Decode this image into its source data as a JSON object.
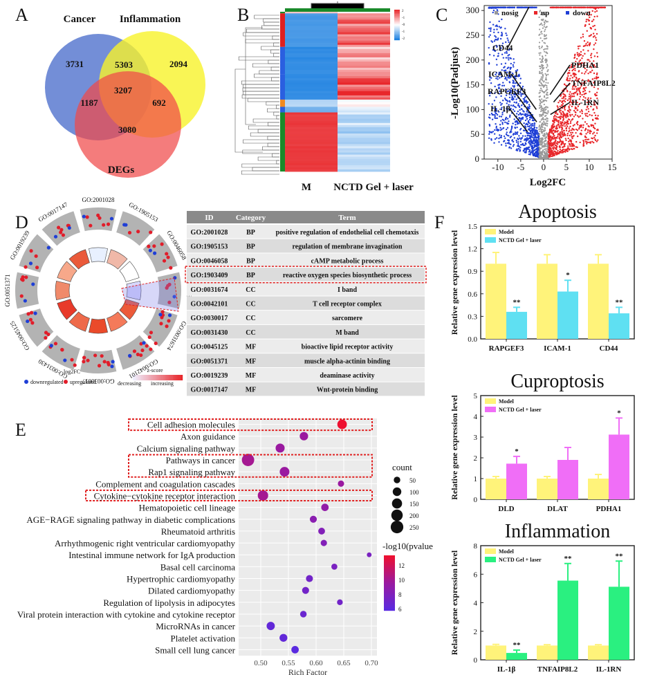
{
  "panel_letters": [
    "A",
    "B",
    "C",
    "D",
    "E",
    "F"
  ],
  "colors": {
    "up": "#e8262a",
    "down": "#1f3fd6",
    "nosig": "#999999",
    "yellow": "#ffee55",
    "cyan": "#5fe0f2",
    "magenta": "#f06ef7",
    "green": "#2af080",
    "model": "#fff37a",
    "red_dot": "#e11d2a"
  },
  "chart_data": [
    {
      "id": "A",
      "type": "venn",
      "sets": [
        "Cancer",
        "Inflammation",
        "DEGs"
      ],
      "regions": {
        "cancer_only": 3731,
        "inflammation_only": 2094,
        "degs_only": 3080,
        "cancer_inflammation": 5303,
        "cancer_degs": 1187,
        "inflammation_degs": 692,
        "all": 3207
      }
    },
    {
      "id": "B",
      "type": "heatmap",
      "columns": [
        "M",
        "NCTD Gel + laser"
      ],
      "scale_ticks": [
        "2",
        "-1",
        "-0",
        "-1",
        "-2"
      ],
      "blocks": [
        {
          "rows": 0.01,
          "M": 0.6,
          "N": 0.6,
          "group": "green"
        },
        {
          "rows": 0.21,
          "M": -1.6,
          "N": 1.4,
          "group": "red"
        },
        {
          "rows": 0.17,
          "M": -1.8,
          "N": 0.9,
          "group": "blue"
        },
        {
          "rows": 0.16,
          "M": -1.8,
          "N": 1.8,
          "group": "blue"
        },
        {
          "rows": 0.045,
          "M": -0.6,
          "N": 0.2,
          "group": "orange"
        },
        {
          "rows": 0.035,
          "M": -1.2,
          "N": -0.3,
          "group": "blue"
        },
        {
          "rows": 0.37,
          "M": 1.8,
          "N": -0.7,
          "group": "green"
        }
      ]
    },
    {
      "id": "C",
      "type": "scatter",
      "legend": [
        "nosig",
        "up",
        "down"
      ],
      "xlabel": "Log2FC",
      "ylabel": "-Log10(Padjust)",
      "xlim": [
        -13,
        15
      ],
      "ylim": [
        0,
        310
      ],
      "xticks": [
        "-10",
        "-5",
        "0",
        "5",
        "10",
        "15"
      ],
      "yticks": [
        "0",
        "50",
        "100",
        "150",
        "200",
        "250",
        "300"
      ],
      "annotations": [
        {
          "label": "CD44",
          "x": -3.2,
          "y": 307
        },
        {
          "label": "ICAM-1",
          "x": -1.6,
          "y": 100
        },
        {
          "label": "RAPGEF3",
          "x": -1.5,
          "y": 75
        },
        {
          "label": "IL-1β",
          "x": -3.5,
          "y": 55
        },
        {
          "label": "PDHA1",
          "x": 1.4,
          "y": 130
        },
        {
          "label": "TNFAIP8L2",
          "x": 2.2,
          "y": 115
        },
        {
          "label": "IL-1RN",
          "x": 1.5,
          "y": 90
        }
      ]
    },
    {
      "id": "D",
      "type": "table",
      "circle_labels": [
        "GO:2001028",
        "GO:1905153",
        "GO:0046058",
        "GO:1903409",
        "GO:0031674",
        "GO:0042101",
        "GO:0030017",
        "GO:0031430",
        "GO:0045125",
        "GO:0051371",
        "GO:0019239",
        "GO:0017147"
      ],
      "circle_legend": {
        "log2fc": "log2FC",
        "down": "downregulated",
        "up": "upregulated",
        "zscore": "z-score",
        "decreasing": "decreasing",
        "increasing": "increasing"
      },
      "header": [
        "ID",
        "Category",
        "Term"
      ],
      "rows": [
        [
          "GO:2001028",
          "BP",
          "positive regulation of endothelial cell chemotaxis"
        ],
        [
          "GO:1905153",
          "BP",
          "regulation of membrane invagination"
        ],
        [
          "GO:0046058",
          "BP",
          "cAMP metabolic process"
        ],
        [
          "GO:1903409",
          "BP",
          "reactive oxygen species biosynthetic process"
        ],
        [
          "GO:0031674",
          "CC",
          "I band"
        ],
        [
          "GO:0042101",
          "CC",
          "T cell receptor complex"
        ],
        [
          "GO:0030017",
          "CC",
          "sarcomere"
        ],
        [
          "GO:0031430",
          "CC",
          "M band"
        ],
        [
          "GO:0045125",
          "MF",
          "bioactive lipid receptor activity"
        ],
        [
          "GO:0051371",
          "MF",
          "muscle alpha-actinin binding"
        ],
        [
          "GO:0019239",
          "MF",
          "deaminase activity"
        ],
        [
          "GO:0017147",
          "MF",
          "Wnt-protein binding"
        ]
      ]
    },
    {
      "id": "E",
      "type": "scatter",
      "xlabel": "Rich Factor",
      "xlim": [
        0.46,
        0.71
      ],
      "xticks": [
        0.5,
        0.55,
        0.6,
        0.65,
        0.7
      ],
      "count_legend_title": "count",
      "count_legend": [
        50,
        100,
        150,
        200,
        250
      ],
      "color_legend_title": "-log10(pvalue",
      "color_legend": [
        12,
        10,
        8,
        6
      ],
      "points": [
        {
          "term": "Cell adhesion molecules",
          "x": 0.647,
          "count": 130,
          "p": 13
        },
        {
          "term": "Axon guidance",
          "x": 0.578,
          "count": 95,
          "p": 9
        },
        {
          "term": "Calcium signaling pathway",
          "x": 0.535,
          "count": 115,
          "p": 9
        },
        {
          "term": "Pathways in cancer",
          "x": 0.477,
          "count": 240,
          "p": 9.5
        },
        {
          "term": "Rap1 signaling pathway",
          "x": 0.543,
          "count": 135,
          "p": 9
        },
        {
          "term": "Complement and coagulation cascades",
          "x": 0.645,
          "count": 45,
          "p": 9
        },
        {
          "term": "Cytokine−cytokine receptor interaction",
          "x": 0.504,
          "count": 160,
          "p": 9.5
        },
        {
          "term": "Hematopoietic cell lineage",
          "x": 0.616,
          "count": 70,
          "p": 8.5
        },
        {
          "term": "AGE−RAGE signaling pathway in diabetic complications",
          "x": 0.595,
          "count": 60,
          "p": 8
        },
        {
          "term": "Rheumatoid arthritis",
          "x": 0.61,
          "count": 55,
          "p": 7.5
        },
        {
          "term": "Arrhythmogenic right ventricular cardiomyopathy",
          "x": 0.614,
          "count": 45,
          "p": 7.5
        },
        {
          "term": "Intestinal immune network for IgA production",
          "x": 0.696,
          "count": 20,
          "p": 7
        },
        {
          "term": "Basal cell carcinoma",
          "x": 0.633,
          "count": 40,
          "p": 7
        },
        {
          "term": "Hypertrophic cardiomyopathy",
          "x": 0.588,
          "count": 60,
          "p": 6.5
        },
        {
          "term": "Dilated cardiomyopathy",
          "x": 0.581,
          "count": 60,
          "p": 6.5
        },
        {
          "term": "Regulation of lipolysis in adipocytes",
          "x": 0.643,
          "count": 35,
          "p": 6.5
        },
        {
          "term": "Viral protein interaction with cytokine and cytokine receptor",
          "x": 0.577,
          "count": 50,
          "p": 6
        },
        {
          "term": "MicroRNAs in cancer",
          "x": 0.518,
          "count": 90,
          "p": 5.5
        },
        {
          "term": "Platelet activation",
          "x": 0.541,
          "count": 80,
          "p": 5.5
        },
        {
          "term": "Small cell lung cancer",
          "x": 0.562,
          "count": 70,
          "p": 5
        }
      ],
      "highlighted": [
        "Cell adhesion molecules",
        "Pathways in cancer",
        "Rap1 signaling pathway",
        "Cytokine−cytokine receptor interaction"
      ]
    },
    {
      "id": "F1",
      "type": "bar",
      "title": "Apoptosis",
      "ylabel": "Relative gene expression level",
      "categories": [
        "RAPGEF3",
        "ICAM-1",
        "CD44"
      ],
      "ylim": [
        0,
        1.5
      ],
      "yticks": [
        "0.0",
        "0.3",
        "0.6",
        "0.9",
        "1.2",
        "1.5"
      ],
      "series": [
        {
          "name": "Model",
          "values": [
            1,
            1,
            1
          ],
          "errors": [
            0.15,
            0.12,
            0.12
          ]
        },
        {
          "name": "NCTD Gel + laser",
          "values": [
            0.36,
            0.63,
            0.34
          ],
          "errors": [
            0.06,
            0.15,
            0.08
          ],
          "sig": [
            "**",
            "*",
            "**"
          ]
        }
      ]
    },
    {
      "id": "F2",
      "type": "bar",
      "title": "Cuproptosis",
      "ylabel": "Relative gene expression level",
      "categories": [
        "DLD",
        "DLAT",
        "PDHA1"
      ],
      "ylim": [
        0,
        5
      ],
      "yticks": [
        "0",
        "1",
        "2",
        "3",
        "4",
        "5"
      ],
      "series": [
        {
          "name": "Model",
          "values": [
            1,
            1,
            1
          ],
          "errors": [
            0.1,
            0.1,
            0.2
          ]
        },
        {
          "name": "NCTD Gel + laser",
          "values": [
            1.72,
            1.9,
            3.12
          ],
          "errors": [
            0.35,
            0.6,
            0.8
          ],
          "sig": [
            "*",
            "",
            "*"
          ]
        }
      ]
    },
    {
      "id": "F3",
      "type": "bar",
      "title": "Inflammation",
      "ylabel": "Relative gene expression level",
      "categories": [
        "IL-1β",
        "TNFAIP8L2",
        "IL-1RN"
      ],
      "ylim": [
        0,
        8
      ],
      "yticks": [
        "0",
        "2",
        "4",
        "6",
        "8"
      ],
      "series": [
        {
          "name": "Model",
          "values": [
            1,
            1,
            1
          ],
          "errors": [
            0.08,
            0.06,
            0.06
          ]
        },
        {
          "name": "NCTD Gel + laser",
          "values": [
            0.48,
            5.55,
            5.12
          ],
          "errors": [
            0.2,
            1.2,
            1.8
          ],
          "sig": [
            "**",
            "**",
            "**"
          ]
        }
      ]
    }
  ]
}
